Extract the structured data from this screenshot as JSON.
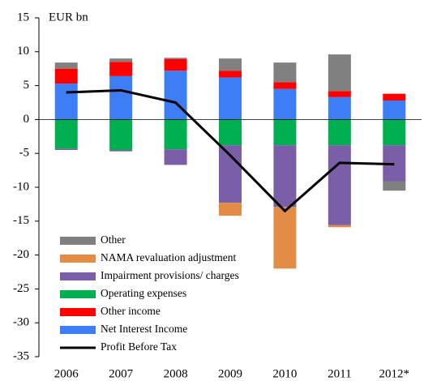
{
  "chart_data": {
    "type": "bar",
    "y_label": "EUR bn",
    "categories": [
      "2006",
      "2007",
      "2008",
      "2009",
      "2010",
      "2011",
      "2012*"
    ],
    "series": [
      {
        "name": "Net Interest Income",
        "color": "#3d7ef7",
        "values": [
          5.3,
          6.4,
          7.2,
          6.2,
          4.5,
          3.3,
          2.8
        ]
      },
      {
        "name": "Other income",
        "color": "#ff0000",
        "values": [
          2.2,
          2.1,
          1.7,
          1.0,
          1.0,
          0.9,
          1.0
        ]
      },
      {
        "name": "Operating expenses",
        "color": "#00b050",
        "values": [
          -4.3,
          -4.5,
          -4.4,
          -3.8,
          -3.8,
          -3.8,
          -3.8
        ]
      },
      {
        "name": "Impairment provisions/ charges",
        "color": "#7b5ea8",
        "values": [
          -0.2,
          -0.2,
          -2.3,
          -8.5,
          -9.1,
          -11.8,
          -5.3
        ]
      },
      {
        "name": "NAMA revaluation adjustment",
        "color": "#e38c45",
        "values": [
          0,
          0,
          0,
          -1.9,
          -9.1,
          -0.3,
          0
        ]
      },
      {
        "name": "Other",
        "color": "#808080",
        "values": [
          0.9,
          0.5,
          0.2,
          1.8,
          2.9,
          5.4,
          -1.4
        ]
      },
      {
        "name": "Profit Before Tax",
        "type": "line",
        "color": "#000000",
        "values": [
          4.0,
          4.3,
          2.5,
          -5.3,
          -13.5,
          -6.4,
          -6.6
        ]
      }
    ],
    "ylim": [
      -35,
      15
    ],
    "yticks": [
      -35,
      -30,
      -25,
      -20,
      -15,
      -10,
      -5,
      0,
      5,
      10,
      15
    ],
    "legend": "lower-left"
  }
}
